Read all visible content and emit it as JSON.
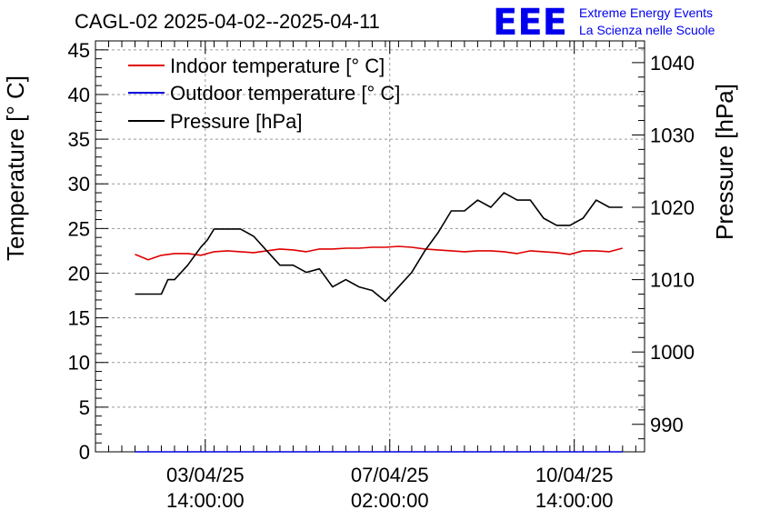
{
  "chart_data": {
    "type": "line",
    "title": "CAGL-02 2025-04-02--2025-04-11",
    "logo_text": "EEE",
    "brand_line1": "Extreme Energy Events",
    "brand_line2": "La Scienza nelle Scuole",
    "ylabel_left": "Temperature [° C]",
    "ylabel_right": "Pressure [hPa]",
    "ylim_left": [
      0,
      46
    ],
    "ylim_right": [
      986.2,
      1043
    ],
    "y_left_ticks": [
      "0",
      "5",
      "10",
      "15",
      "20",
      "25",
      "30",
      "35",
      "40",
      "45"
    ],
    "y_right_ticks": [
      "990",
      "1000",
      "1010",
      "1020",
      "1030",
      "1040"
    ],
    "x_ticks": [
      {
        "line1": "03/04/25",
        "line2": "14:00:00"
      },
      {
        "line1": "07/04/25",
        "line2": "02:00:00"
      },
      {
        "line1": "10/04/25",
        "line2": "14:00:00"
      }
    ],
    "grid": true,
    "legend_position": "top-left",
    "colors": {
      "indoor": "#e00000",
      "outdoor": "#0000e0",
      "pressure": "#000000",
      "brand": "#0000ee"
    },
    "series": [
      {
        "name": "Indoor temperature [° C]",
        "axis": "left",
        "color": "#e00000",
        "x": [
          "2025-04-02 06:00",
          "2025-04-02 12:00",
          "2025-04-02 18:00",
          "2025-04-03 00:00",
          "2025-04-03 06:00",
          "2025-04-03 12:00",
          "2025-04-03 18:00",
          "2025-04-04 00:00",
          "2025-04-04 06:00",
          "2025-04-04 12:00",
          "2025-04-04 18:00",
          "2025-04-05 00:00",
          "2025-04-05 06:00",
          "2025-04-05 12:00",
          "2025-04-05 18:00",
          "2025-04-06 00:00",
          "2025-04-06 06:00",
          "2025-04-06 12:00",
          "2025-04-06 18:00",
          "2025-04-07 00:00",
          "2025-04-07 06:00",
          "2025-04-07 12:00",
          "2025-04-07 18:00",
          "2025-04-08 00:00",
          "2025-04-08 06:00",
          "2025-04-08 12:00",
          "2025-04-08 18:00",
          "2025-04-09 00:00",
          "2025-04-09 06:00",
          "2025-04-09 12:00",
          "2025-04-09 18:00",
          "2025-04-10 00:00",
          "2025-04-10 06:00",
          "2025-04-10 12:00",
          "2025-04-10 18:00",
          "2025-04-11 00:00",
          "2025-04-11 06:00",
          "2025-04-11 12:00"
        ],
        "y": [
          22.1,
          21.5,
          22.0,
          22.2,
          22.2,
          22.0,
          22.4,
          22.5,
          22.4,
          22.3,
          22.5,
          22.7,
          22.6,
          22.4,
          22.7,
          22.7,
          22.8,
          22.8,
          22.9,
          22.9,
          23.0,
          22.9,
          22.7,
          22.6,
          22.5,
          22.4,
          22.5,
          22.5,
          22.4,
          22.2,
          22.5,
          22.4,
          22.3,
          22.1,
          22.5,
          22.5,
          22.4,
          22.8
        ]
      },
      {
        "name": "Outdoor temperature [° C]",
        "axis": "left",
        "color": "#0000e0",
        "x": [
          "2025-04-02 06:00",
          "2025-04-11 12:00"
        ],
        "y": [
          0,
          0
        ]
      },
      {
        "name": "Pressure [hPa]",
        "axis": "right",
        "color": "#000000",
        "x": [
          "2025-04-02 06:00",
          "2025-04-02 18:00",
          "2025-04-02 21:00",
          "2025-04-03 00:00",
          "2025-04-03 06:00",
          "2025-04-03 12:00",
          "2025-04-03 15:00",
          "2025-04-03 18:00",
          "2025-04-04 00:00",
          "2025-04-04 06:00",
          "2025-04-04 12:00",
          "2025-04-04 18:00",
          "2025-04-05 00:00",
          "2025-04-05 06:00",
          "2025-04-05 09:00",
          "2025-04-05 12:00",
          "2025-04-05 18:00",
          "2025-04-06 00:00",
          "2025-04-06 06:00",
          "2025-04-06 12:00",
          "2025-04-06 18:00",
          "2025-04-07 00:00",
          "2025-04-07 06:00",
          "2025-04-07 12:00",
          "2025-04-07 18:00",
          "2025-04-08 00:00",
          "2025-04-08 06:00",
          "2025-04-08 12:00",
          "2025-04-08 18:00",
          "2025-04-09 00:00",
          "2025-04-09 06:00",
          "2025-04-09 12:00",
          "2025-04-09 18:00",
          "2025-04-10 00:00",
          "2025-04-10 06:00",
          "2025-04-10 12:00",
          "2025-04-10 18:00",
          "2025-04-11 00:00",
          "2025-04-11 06:00",
          "2025-04-11 12:00"
        ],
        "y": [
          1008,
          1008,
          1010,
          1010,
          1012,
          1014.5,
          1015.5,
          1017,
          1017,
          1017,
          1016,
          1014,
          1012,
          1012,
          1011.5,
          1011,
          1011.5,
          1009,
          1010,
          1009,
          1008.5,
          1007,
          1009,
          1011,
          1014,
          1016.5,
          1019.5,
          1019.5,
          1021,
          1020,
          1022,
          1021,
          1021,
          1018.5,
          1017.5,
          1017.5,
          1018.5,
          1021,
          1020,
          1020
        ]
      }
    ]
  }
}
